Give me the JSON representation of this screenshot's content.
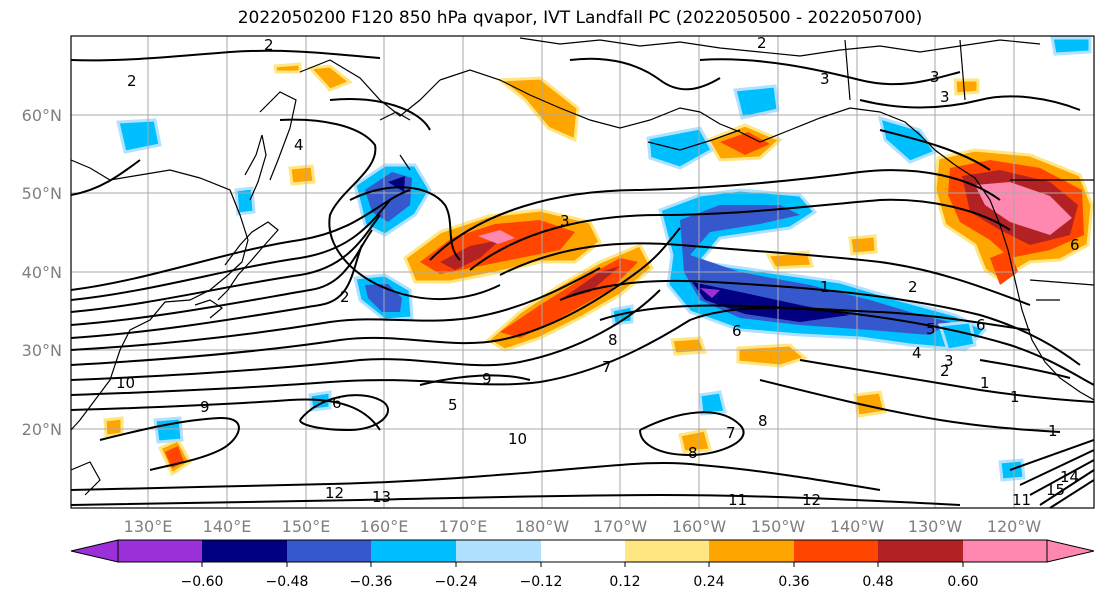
{
  "title": "2022050200 F120 850 hPa qvapor, IVT Landfall PC (2022050500 - 2022050700)",
  "lat_labels": [
    "60°N",
    "50°N",
    "40°N",
    "30°N",
    "20°N"
  ],
  "lon_labels": [
    "130°E",
    "140°E",
    "150°E",
    "160°E",
    "170°E",
    "180°W",
    "170°W",
    "160°W",
    "150°W",
    "140°W",
    "130°W",
    "120°W"
  ],
  "contour_labels": [
    "2",
    "2",
    "2",
    "3",
    "3",
    "4",
    "3",
    "1",
    "2",
    "6",
    "5",
    "4",
    "3",
    "2",
    "1",
    "1",
    "1",
    "7",
    "8",
    "6",
    "10",
    "9",
    "8",
    "7",
    "6",
    "5",
    "8",
    "9",
    "10",
    "11",
    "12",
    "13",
    "11",
    "12",
    "15",
    "14",
    "2",
    "3",
    "6"
  ],
  "colorbar": {
    "ticks": [
      "-0.60",
      "-0.48",
      "-0.36",
      "-0.24",
      "-0.12",
      "0.12",
      "0.24",
      "0.36",
      "0.48",
      "0.60"
    ],
    "colors": [
      "#9b30d9",
      "#000080",
      "#3558cc",
      "#00bfff",
      "#b0e2ff",
      "#ffffff",
      "#ffe680",
      "#ffa500",
      "#ff4500",
      "#b22222",
      "#ff88b0"
    ]
  }
}
